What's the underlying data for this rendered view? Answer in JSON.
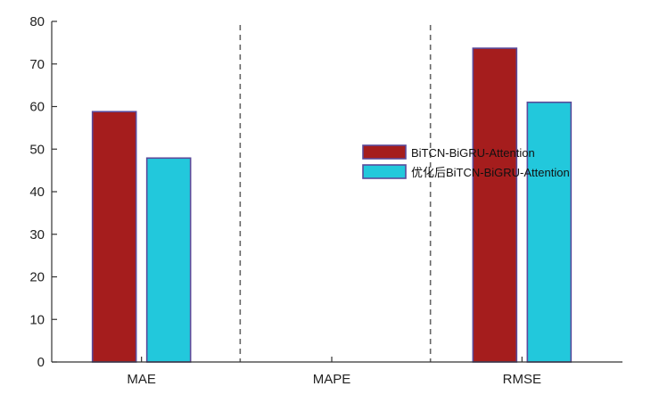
{
  "chart_data": {
    "type": "bar",
    "title": "",
    "xlabel": "",
    "ylabel": "",
    "categories": [
      "MAE",
      "MAPE",
      "RMSE"
    ],
    "series": [
      {
        "name": "BiTCN-BiGRU-Attention",
        "values": [
          58.8,
          0,
          73.7
        ],
        "color": "#a51d1d"
      },
      {
        "name": "优化后BiTCN-BiGRU-Attention",
        "values": [
          47.9,
          0,
          61.0
        ],
        "color": "#22c8dc"
      }
    ],
    "ylim": [
      0,
      80
    ],
    "yticks": [
      0,
      10,
      20,
      30,
      40,
      50,
      60,
      70,
      80
    ],
    "grid": false,
    "category_separators": "dashed",
    "legend_position": "center-right",
    "bar_edge_color": "#5a4a9a"
  }
}
